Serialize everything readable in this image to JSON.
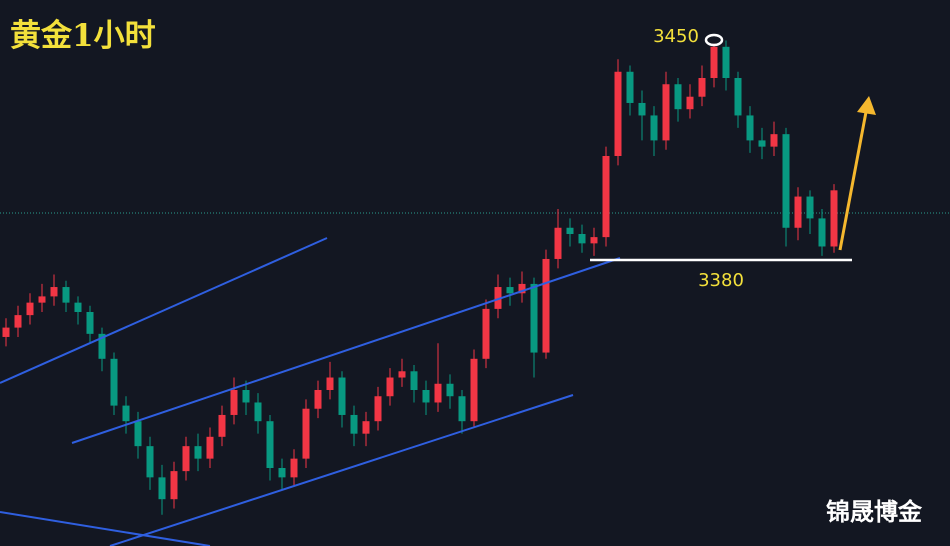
{
  "chart_data": {
    "type": "candlestick",
    "title": "黄金1小时",
    "annotations": [
      "3450",
      "3380"
    ],
    "watermark": "锦晟博金",
    "up_color": "#f23645",
    "down_color": "#089981",
    "ylim": [
      3290,
      3465
    ],
    "open": [
      3357,
      3360,
      3364,
      3368,
      3370,
      3373,
      3368,
      3365,
      3358,
      3350,
      3335,
      3330,
      3322,
      3312,
      3305,
      3314,
      3322,
      3318,
      3325,
      3332,
      3340,
      3336,
      3330,
      3315,
      3312,
      3318,
      3334,
      3340,
      3344,
      3332,
      3326,
      3330,
      3338,
      3344,
      3346,
      3340,
      3336,
      3342,
      3338,
      3330,
      3350,
      3366,
      3373,
      3371,
      3374,
      3352,
      3382,
      3392,
      3390,
      3387,
      3389,
      3415,
      3442,
      3432,
      3428,
      3420,
      3438,
      3430,
      3434,
      3440,
      3450,
      3440,
      3428,
      3420,
      3418,
      3422,
      3392,
      3402,
      3395,
      3386
    ],
    "high": [
      3363,
      3367,
      3371,
      3374,
      3377,
      3375,
      3370,
      3367,
      3360,
      3352,
      3338,
      3333,
      3325,
      3316,
      3317,
      3325,
      3326,
      3328,
      3335,
      3344,
      3343,
      3339,
      3332,
      3318,
      3321,
      3337,
      3343,
      3349,
      3346,
      3335,
      3333,
      3341,
      3347,
      3350,
      3348,
      3343,
      3355,
      3345,
      3340,
      3353,
      3369,
      3377,
      3376,
      3378,
      3376,
      3385,
      3398,
      3395,
      3393,
      3392,
      3418,
      3446,
      3444,
      3436,
      3431,
      3442,
      3440,
      3438,
      3444,
      3451,
      3452,
      3442,
      3431,
      3424,
      3426,
      3424,
      3405,
      3404,
      3398,
      3406
    ],
    "low": [
      3354,
      3357,
      3361,
      3365,
      3367,
      3365,
      3361,
      3355,
      3346,
      3332,
      3326,
      3318,
      3308,
      3300,
      3302,
      3311,
      3314,
      3315,
      3322,
      3329,
      3332,
      3326,
      3311,
      3308,
      3309,
      3315,
      3331,
      3337,
      3328,
      3322,
      3322,
      3327,
      3335,
      3341,
      3336,
      3332,
      3333,
      3334,
      3326,
      3328,
      3347,
      3363,
      3367,
      3368,
      3344,
      3350,
      3379,
      3386,
      3384,
      3383,
      3386,
      3412,
      3428,
      3420,
      3415,
      3417,
      3426,
      3427,
      3431,
      3437,
      3436,
      3424,
      3416,
      3414,
      3415,
      3386,
      3388,
      3390,
      3383,
      3384
    ],
    "close": [
      3360,
      3364,
      3368,
      3370,
      3373,
      3368,
      3365,
      3358,
      3350,
      3335,
      3330,
      3322,
      3312,
      3305,
      3314,
      3322,
      3318,
      3325,
      3332,
      3340,
      3336,
      3330,
      3315,
      3312,
      3318,
      3334,
      3340,
      3344,
      3332,
      3326,
      3330,
      3338,
      3344,
      3346,
      3340,
      3336,
      3342,
      3338,
      3330,
      3350,
      3366,
      3373,
      3371,
      3374,
      3352,
      3382,
      3392,
      3390,
      3387,
      3389,
      3415,
      3442,
      3432,
      3428,
      3420,
      3438,
      3430,
      3434,
      3440,
      3450,
      3440,
      3428,
      3420,
      3418,
      3422,
      3392,
      3402,
      3395,
      3386,
      3404
    ]
  }
}
